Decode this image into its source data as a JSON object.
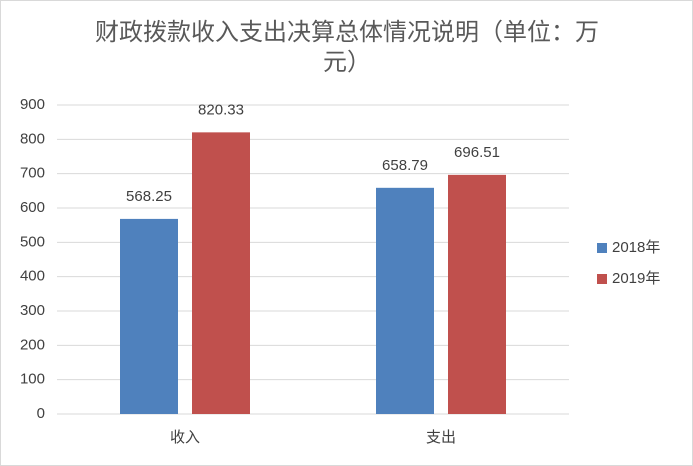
{
  "chart_data": {
    "type": "bar",
    "title": "财政拨款收入支出决算总体情况说明（单位：万元）",
    "categories": [
      "收入",
      "支出"
    ],
    "series": [
      {
        "name": "2018年",
        "color": "#4f81bd",
        "values": [
          568.25,
          658.79
        ]
      },
      {
        "name": "2019年",
        "color": "#c0504d",
        "values": [
          820.33,
          696.51
        ]
      }
    ],
    "ylim": [
      0,
      900
    ],
    "yticks": [
      0,
      100,
      200,
      300,
      400,
      500,
      600,
      700,
      800,
      900
    ],
    "grid": true,
    "legend": "right"
  }
}
